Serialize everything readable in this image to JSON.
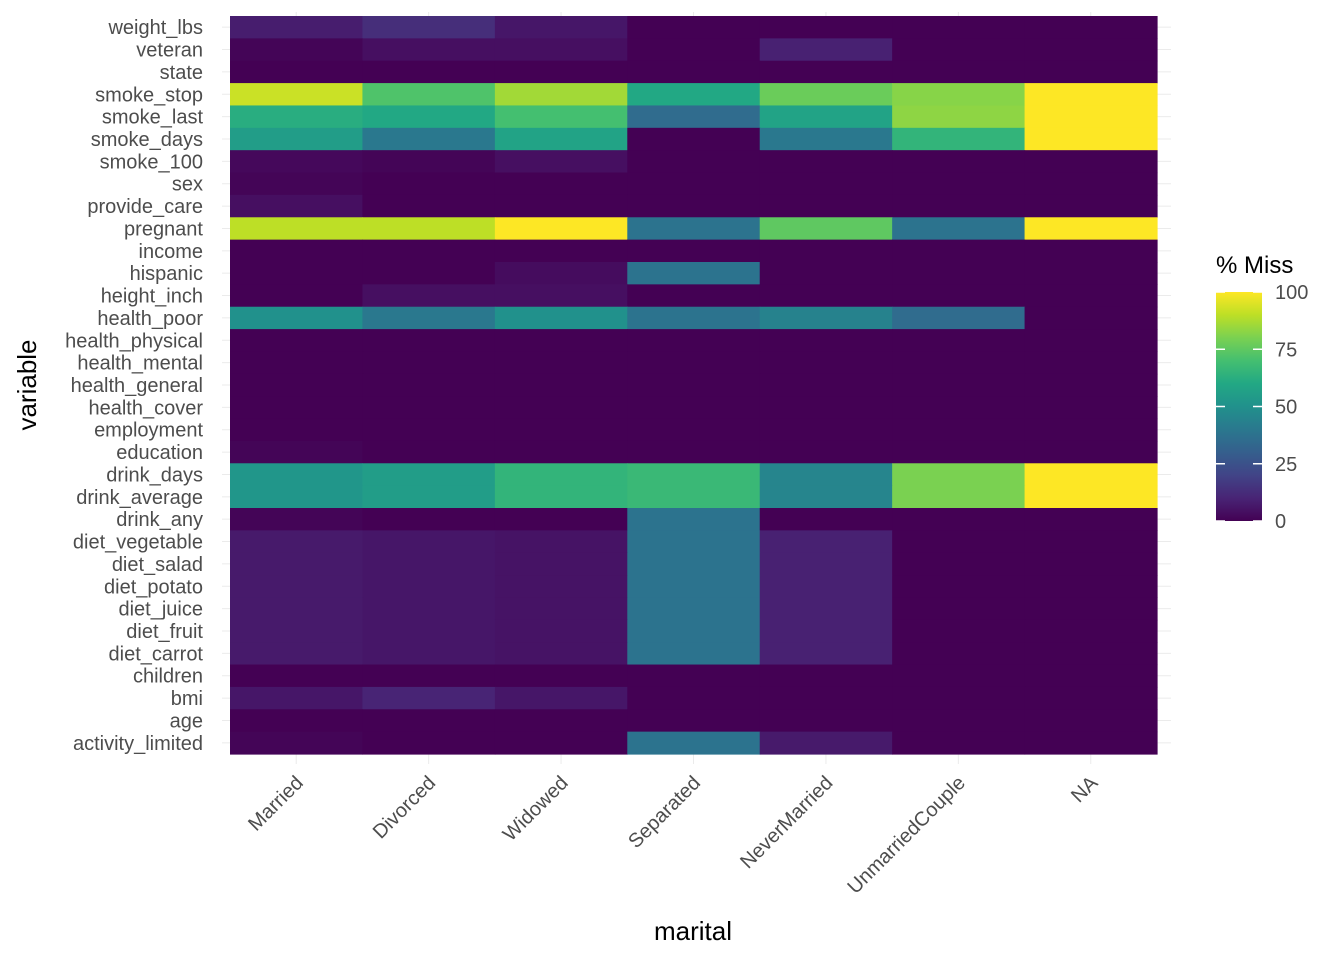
{
  "chart_data": {
    "type": "heatmap",
    "xlabel": "marital",
    "ylabel": "variable",
    "x_categories": [
      "Married",
      "Divorced",
      "Widowed",
      "Separated",
      "NeverMarried",
      "UnmarriedCouple",
      "NA"
    ],
    "y_categories": [
      "weight_lbs",
      "veteran",
      "state",
      "smoke_stop",
      "smoke_last",
      "smoke_days",
      "smoke_100",
      "sex",
      "provide_care",
      "pregnant",
      "income",
      "hispanic",
      "height_inch",
      "health_poor",
      "health_physical",
      "health_mental",
      "health_general",
      "health_cover",
      "employment",
      "education",
      "drink_days",
      "drink_average",
      "drink_any",
      "diet_vegetable",
      "diet_salad",
      "diet_potato",
      "diet_juice",
      "diet_fruit",
      "diet_carrot",
      "children",
      "bmi",
      "age",
      "activity_limited"
    ],
    "values": [
      [
        8,
        13,
        6,
        0,
        0,
        0,
        0
      ],
      [
        1,
        4,
        4,
        0,
        9,
        0,
        0
      ],
      [
        0,
        0,
        0,
        0,
        0,
        0,
        0
      ],
      [
        92,
        72,
        86,
        60,
        77,
        82,
        100
      ],
      [
        62,
        60,
        70,
        35,
        58,
        83,
        100
      ],
      [
        55,
        40,
        58,
        0,
        40,
        65,
        100
      ],
      [
        2,
        1,
        4,
        0,
        0,
        0,
        0
      ],
      [
        1,
        0,
        0,
        0,
        0,
        0,
        0
      ],
      [
        4,
        0,
        0,
        0,
        0,
        0,
        0
      ],
      [
        90,
        90,
        100,
        38,
        75,
        38,
        100
      ],
      [
        0,
        0,
        0,
        0,
        0,
        0,
        0
      ],
      [
        0,
        0,
        3,
        38,
        0,
        0,
        0
      ],
      [
        0,
        4,
        4,
        0,
        0,
        0,
        0
      ],
      [
        50,
        40,
        50,
        38,
        44,
        35,
        0
      ],
      [
        0,
        0,
        0,
        0,
        0,
        0,
        0
      ],
      [
        0,
        0,
        0,
        0,
        0,
        0,
        0
      ],
      [
        0,
        0,
        0,
        0,
        0,
        0,
        0
      ],
      [
        0,
        0,
        0,
        0,
        0,
        0,
        0
      ],
      [
        0,
        0,
        0,
        0,
        0,
        0,
        0
      ],
      [
        1,
        0,
        0,
        0,
        0,
        0,
        0
      ],
      [
        52,
        55,
        65,
        67,
        45,
        80,
        100
      ],
      [
        52,
        55,
        65,
        67,
        45,
        80,
        100
      ],
      [
        1,
        0,
        0,
        38,
        0,
        0,
        0
      ],
      [
        7,
        6,
        5,
        38,
        9,
        0,
        0
      ],
      [
        7,
        6,
        5,
        38,
        9,
        0,
        0
      ],
      [
        7,
        6,
        5,
        38,
        9,
        0,
        0
      ],
      [
        7,
        6,
        5,
        38,
        9,
        0,
        0
      ],
      [
        7,
        6,
        5,
        38,
        9,
        0,
        0
      ],
      [
        7,
        6,
        5,
        38,
        9,
        0,
        0
      ],
      [
        0,
        0,
        0,
        0,
        0,
        0,
        0
      ],
      [
        6,
        10,
        6,
        0,
        0,
        0,
        0
      ],
      [
        0,
        0,
        0,
        0,
        0,
        0,
        0
      ],
      [
        1,
        0,
        0,
        38,
        7,
        0,
        0
      ]
    ],
    "color_scale": "viridis",
    "color_range": [
      0,
      100
    ],
    "legend": {
      "title": "% Miss",
      "ticks": [
        0,
        25,
        50,
        75,
        100
      ],
      "tick_labels": [
        "0",
        "25",
        "50",
        "75",
        "100"
      ],
      "placement": "right"
    },
    "grid": true
  }
}
